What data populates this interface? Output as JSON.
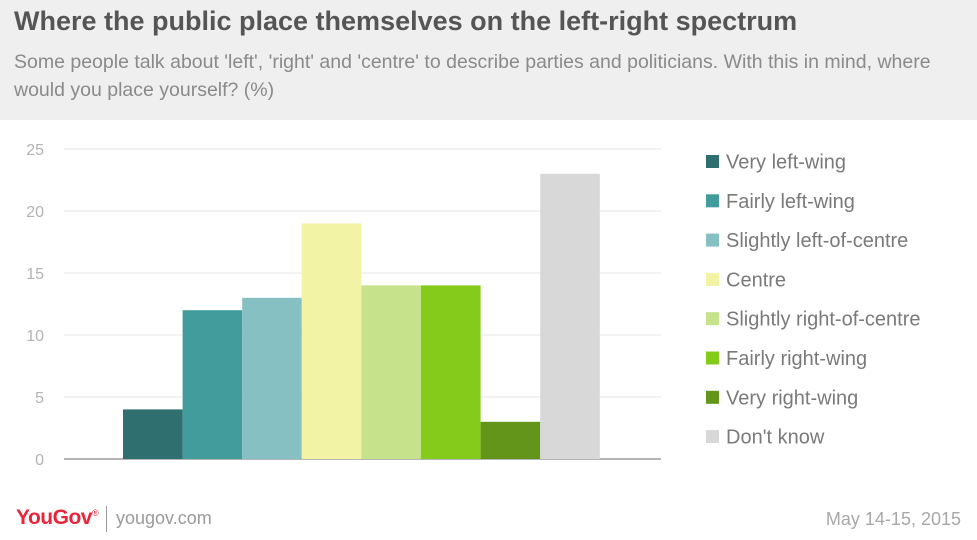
{
  "header": {
    "title": "Where the public place themselves on the left-right spectrum",
    "subtitle": "Some people talk about 'left', 'right' and 'centre' to describe parties and politicians. With this in mind, where would you place yourself? (%)"
  },
  "chart_data": {
    "type": "bar",
    "categories": [
      "Very left-wing",
      "Fairly left-wing",
      "Slightly left-of-centre",
      "Centre",
      "Slightly right-of-centre",
      "Fairly right-wing",
      "Very right-wing",
      "Don't know"
    ],
    "values": [
      4,
      12,
      13,
      19,
      14,
      14,
      3,
      23
    ],
    "colors": [
      "#2f6f6f",
      "#439c9c",
      "#86c0c2",
      "#f2f3a4",
      "#c6e38c",
      "#85cb1c",
      "#62951a",
      "#d8d8d8"
    ],
    "yticks": [
      0,
      5,
      10,
      15,
      20,
      25
    ],
    "ylim": [
      0,
      25
    ],
    "grid": true,
    "legend_position": "right"
  },
  "footer": {
    "brand": "YouGov",
    "brand_mark": "®",
    "site": "yougov.com",
    "date": "May 14-15,  2015"
  }
}
